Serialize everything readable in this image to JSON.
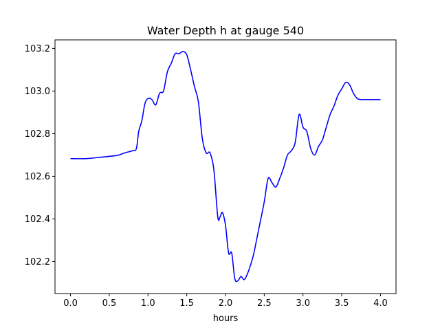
{
  "chart_data": {
    "type": "line",
    "title": "Water Depth h at gauge 540",
    "xlabel": "hours",
    "ylabel": "",
    "xlim": [
      -0.2,
      4.2
    ],
    "ylim": [
      102.05,
      103.24
    ],
    "xticks": [
      0.0,
      0.5,
      1.0,
      1.5,
      2.0,
      2.5,
      3.0,
      3.5,
      4.0
    ],
    "xtick_labels": [
      "0.0",
      "0.5",
      "1.0",
      "1.5",
      "2.0",
      "2.5",
      "3.0",
      "3.5",
      "4.0"
    ],
    "yticks": [
      102.2,
      102.4,
      102.6,
      102.8,
      103.0,
      103.2
    ],
    "ytick_labels": [
      "102.2",
      "102.4",
      "102.6",
      "102.8",
      "103.0",
      "103.2"
    ],
    "grid": false,
    "series": [
      {
        "color": "#0000ff",
        "x": [
          0.0,
          0.2,
          0.4,
          0.6,
          0.7,
          0.8,
          0.85,
          0.88,
          0.92,
          0.96,
          1.0,
          1.05,
          1.1,
          1.15,
          1.2,
          1.25,
          1.3,
          1.35,
          1.4,
          1.45,
          1.5,
          1.55,
          1.6,
          1.65,
          1.7,
          1.75,
          1.8,
          1.85,
          1.9,
          1.93,
          1.96,
          2.0,
          2.04,
          2.08,
          2.12,
          2.16,
          2.2,
          2.24,
          2.28,
          2.32,
          2.36,
          2.4,
          2.45,
          2.5,
          2.55,
          2.6,
          2.65,
          2.7,
          2.75,
          2.8,
          2.85,
          2.9,
          2.95,
          3.0,
          3.05,
          3.1,
          3.15,
          3.2,
          3.25,
          3.3,
          3.35,
          3.4,
          3.45,
          3.5,
          3.55,
          3.6,
          3.65,
          3.7,
          3.75,
          3.8,
          3.85,
          3.9,
          3.95,
          4.0
        ],
        "y": [
          102.683,
          102.683,
          102.69,
          102.698,
          102.71,
          102.72,
          102.73,
          102.81,
          102.86,
          102.94,
          102.965,
          102.96,
          102.935,
          102.99,
          103.0,
          103.09,
          103.13,
          103.175,
          103.175,
          103.185,
          103.17,
          103.1,
          103.02,
          102.95,
          102.78,
          102.71,
          102.71,
          102.63,
          102.41,
          102.41,
          102.43,
          102.37,
          102.24,
          102.24,
          102.12,
          102.11,
          102.13,
          102.115,
          102.14,
          102.18,
          102.23,
          102.3,
          102.39,
          102.48,
          102.59,
          102.57,
          102.55,
          102.59,
          102.64,
          102.7,
          102.72,
          102.76,
          102.89,
          102.83,
          102.81,
          102.73,
          102.7,
          102.74,
          102.77,
          102.83,
          102.89,
          102.93,
          102.98,
          103.01,
          103.04,
          103.03,
          102.99,
          102.965,
          102.96,
          102.96,
          102.96,
          102.96,
          102.96,
          102.96
        ]
      }
    ]
  }
}
